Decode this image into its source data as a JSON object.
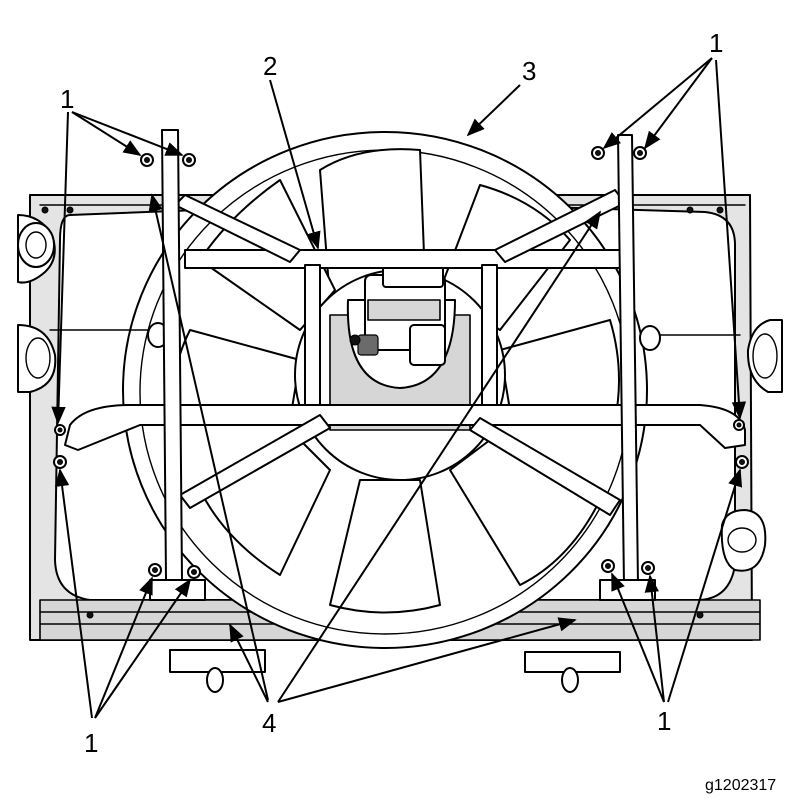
{
  "callouts": {
    "fastener": "1",
    "fan_motor": "2",
    "fan_shroud": "3",
    "brace": "4"
  },
  "figure_id": "g1202317"
}
